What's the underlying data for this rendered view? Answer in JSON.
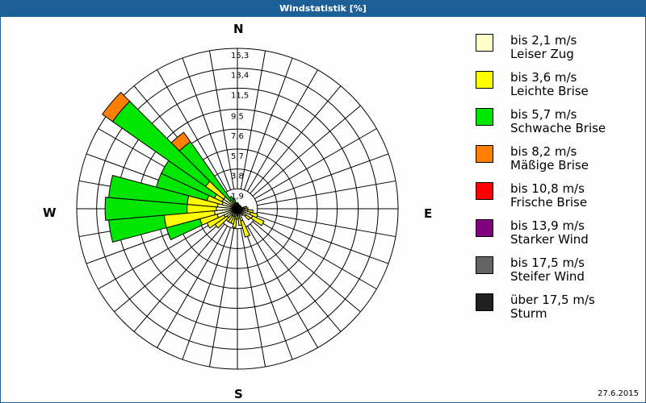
{
  "window": {
    "title": "Windstatistik [%]"
  },
  "compass": {
    "n": "N",
    "e": "E",
    "s": "S",
    "w": "W"
  },
  "footer": {
    "date": "27.6.2015"
  },
  "legend": [
    {
      "range": "bis 2,1 m/s",
      "name": "Leiser Zug",
      "color": "#ffffc8"
    },
    {
      "range": "bis 3,6 m/s",
      "name": "Leichte Brise",
      "color": "#ffff00"
    },
    {
      "range": "bis 5,7 m/s",
      "name": "Schwache Brise",
      "color": "#00e600"
    },
    {
      "range": "bis 8,2 m/s",
      "name": "Mäßige Brise",
      "color": "#ff8000"
    },
    {
      "range": "bis 10,8 m/s",
      "name": "Frische Brise",
      "color": "#ff0000"
    },
    {
      "range": "bis 13,9 m/s",
      "name": "Starker Wind",
      "color": "#800080"
    },
    {
      "range": "bis 17,5 m/s",
      "name": "Steifer Wind",
      "color": "#646464"
    },
    {
      "range": "über 17,5 m/s",
      "name": "Sturm",
      "color": "#202020"
    }
  ],
  "chart_data": {
    "type": "polar-stacked-bar (wind rose)",
    "title": "Windstatistik [%]",
    "radial_ticks": [
      1.9,
      3.8,
      5.7,
      7.6,
      9.5,
      11.5,
      13.4,
      15.3
    ],
    "radial_max": 15.3,
    "sector_width_deg": 10,
    "directions_deg": [
      0,
      10,
      20,
      30,
      40,
      50,
      60,
      70,
      80,
      90,
      100,
      110,
      120,
      130,
      140,
      150,
      160,
      170,
      180,
      190,
      200,
      210,
      220,
      230,
      240,
      250,
      260,
      270,
      280,
      290,
      300,
      310,
      320,
      330,
      340,
      350
    ],
    "series_names": [
      "Leiser Zug",
      "Leichte Brise",
      "Schwache Brise",
      "Mäßige Brise",
      "Frische Brise",
      "Starker Wind",
      "Steifer Wind",
      "Sturm"
    ],
    "cumulative": [
      {
        "dir": 0,
        "values": [
          0.6,
          0.6,
          0.6,
          0.6
        ]
      },
      {
        "dir": 10,
        "values": [
          0.5,
          0.5,
          0.5,
          0.5
        ]
      },
      {
        "dir": 20,
        "values": [
          0.4,
          0.4,
          0.4,
          0.4
        ]
      },
      {
        "dir": 30,
        "values": [
          0.4,
          0.4,
          0.4,
          0.4
        ]
      },
      {
        "dir": 40,
        "values": [
          0.4,
          0.4,
          0.4,
          0.4
        ]
      },
      {
        "dir": 50,
        "values": [
          0.4,
          0.4,
          0.4,
          0.4
        ]
      },
      {
        "dir": 60,
        "values": [
          0.4,
          0.4,
          0.4,
          0.4
        ]
      },
      {
        "dir": 70,
        "values": [
          0.4,
          0.4,
          0.4,
          0.4
        ]
      },
      {
        "dir": 80,
        "values": [
          0.6,
          0.9,
          0.9,
          0.9
        ]
      },
      {
        "dir": 90,
        "values": [
          0.7,
          1.0,
          1.0,
          1.0
        ]
      },
      {
        "dir": 100,
        "values": [
          1.0,
          1.5,
          1.5,
          1.5
        ]
      },
      {
        "dir": 110,
        "values": [
          1.3,
          2.0,
          2.0,
          2.0
        ]
      },
      {
        "dir": 120,
        "values": [
          1.6,
          2.8,
          2.8,
          2.8
        ]
      },
      {
        "dir": 130,
        "values": [
          1.0,
          1.5,
          1.5,
          1.5
        ]
      },
      {
        "dir": 140,
        "values": [
          0.6,
          0.8,
          0.8,
          0.8
        ]
      },
      {
        "dir": 150,
        "values": [
          0.4,
          0.5,
          0.5,
          0.5
        ]
      },
      {
        "dir": 160,
        "values": [
          1.2,
          2.8,
          2.8,
          2.8
        ]
      },
      {
        "dir": 170,
        "values": [
          0.9,
          1.6,
          1.6,
          1.6
        ]
      },
      {
        "dir": 180,
        "values": [
          0.7,
          1.0,
          1.0,
          1.0
        ]
      },
      {
        "dir": 190,
        "values": [
          1.0,
          1.8,
          1.8,
          1.8
        ]
      },
      {
        "dir": 200,
        "values": [
          0.8,
          1.5,
          1.5,
          1.5
        ]
      },
      {
        "dir": 210,
        "values": [
          0.8,
          1.5,
          1.5,
          1.5
        ]
      },
      {
        "dir": 220,
        "values": [
          0.8,
          1.5,
          1.5,
          1.5
        ]
      },
      {
        "dir": 230,
        "values": [
          1.2,
          2.6,
          2.6,
          2.6
        ]
      },
      {
        "dir": 240,
        "values": [
          1.4,
          3.2,
          3.2,
          3.2
        ]
      },
      {
        "dir": 250,
        "values": [
          2.0,
          3.7,
          7.0,
          7.0
        ]
      },
      {
        "dir": 260,
        "values": [
          2.2,
          7.0,
          12.3,
          12.3
        ]
      },
      {
        "dir": 270,
        "values": [
          2.0,
          4.8,
          12.6,
          12.6
        ]
      },
      {
        "dir": 280,
        "values": [
          1.9,
          4.8,
          12.3,
          12.3
        ]
      },
      {
        "dir": 290,
        "values": [
          1.5,
          3.0,
          8.0,
          8.0
        ]
      },
      {
        "dir": 300,
        "values": [
          1.6,
          2.4,
          8.0,
          8.0
        ]
      },
      {
        "dir": 310,
        "values": [
          1.6,
          3.7,
          14.5,
          15.7
        ]
      },
      {
        "dir": 320,
        "values": [
          0.5,
          1.0,
          7.8,
          8.9
        ]
      },
      {
        "dir": 330,
        "values": [
          0.8,
          0.8,
          1.3,
          1.3
        ]
      },
      {
        "dir": 340,
        "values": [
          0.6,
          0.6,
          1.0,
          1.0
        ]
      },
      {
        "dir": 350,
        "values": [
          0.5,
          0.5,
          0.5,
          0.5
        ]
      }
    ]
  }
}
